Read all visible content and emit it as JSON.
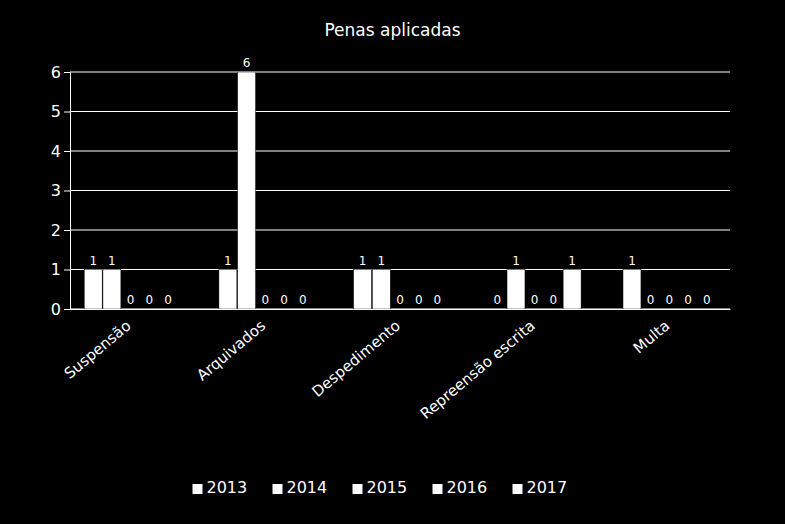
{
  "chart_data": {
    "type": "bar",
    "title": "Penas aplicadas",
    "categories": [
      "Suspensão",
      "Arquivados",
      "Despedimento",
      "Repreensão escrita",
      "Multa"
    ],
    "series": [
      {
        "name": "2013",
        "color": "#ffffff",
        "values": [
          1,
          1,
          1,
          0,
          1
        ]
      },
      {
        "name": "2014",
        "color": "#ffffff",
        "values": [
          1,
          6,
          1,
          1,
          0
        ]
      },
      {
        "name": "2015",
        "color": "#ffffff",
        "values": [
          0,
          0,
          0,
          0,
          0
        ]
      },
      {
        "name": "2016",
        "color": "#ffffff",
        "values": [
          0,
          0,
          0,
          0,
          0
        ]
      },
      {
        "name": "2017",
        "color": "#ffffff",
        "values": [
          0,
          0,
          0,
          1,
          0
        ]
      }
    ],
    "ylim": [
      0,
      6
    ],
    "yticks": [
      0,
      1,
      2,
      3,
      4,
      5,
      6
    ],
    "grid": true,
    "data_labels": true,
    "legend": "bottom"
  }
}
